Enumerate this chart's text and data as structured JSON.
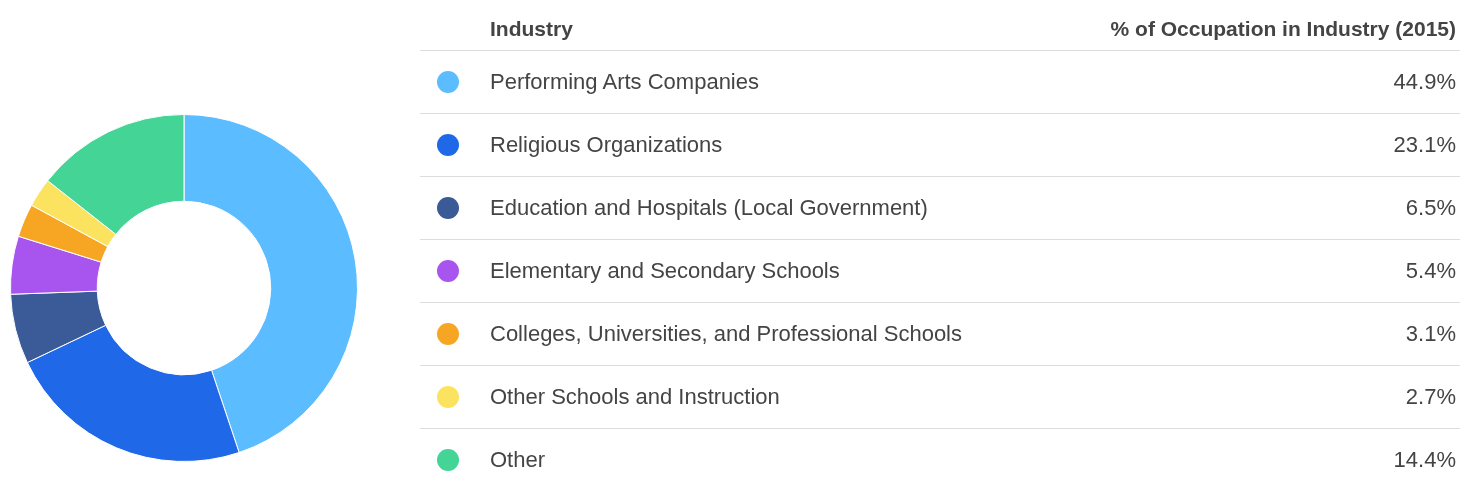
{
  "chart_data": {
    "type": "donut",
    "legend_title": "Industry",
    "ylabel": "% of Occupation in Industry (2015)",
    "categories": [
      "Performing Arts Companies",
      "Religious Organizations",
      "Education and Hospitals (Local Government)",
      "Elementary and Secondary Schools",
      "Colleges, Universities, and Professional Schools",
      "Other Schools and Instruction",
      "Other"
    ],
    "values": [
      44.9,
      23.1,
      6.5,
      5.4,
      3.1,
      2.7,
      14.4
    ],
    "colors": [
      "#5bbcff",
      "#1f68e8",
      "#3a5a98",
      "#a855f0",
      "#f6a623",
      "#fce35f",
      "#43d496"
    ],
    "value_labels": [
      "44.9%",
      "23.1%",
      "6.5%",
      "5.4%",
      "3.1%",
      "2.7%",
      "14.4%"
    ],
    "legend": "right"
  }
}
